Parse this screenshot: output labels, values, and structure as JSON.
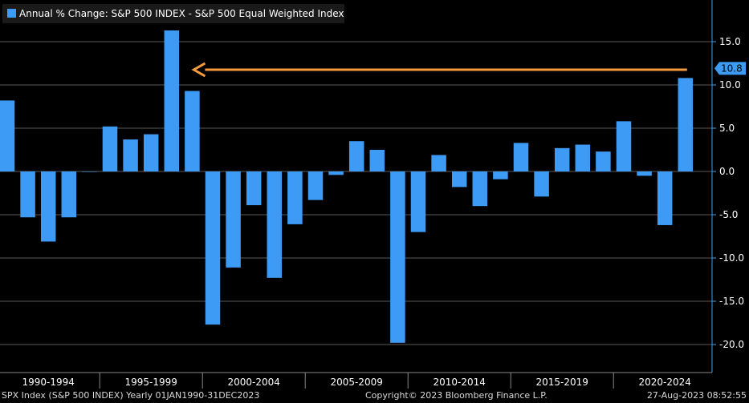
{
  "chart_data": {
    "type": "bar",
    "title": "Annual % Change: S&P 500 INDEX - S&P 500 Equal Weighted Index",
    "legend_position": "top-left",
    "series": [
      {
        "name": "Annual % Change: S&P 500 INDEX - S&P 500 Equal Weighted Index",
        "color": "#3d9bf5",
        "x": [
          1990,
          1991,
          1992,
          1993,
          1994,
          1995,
          1996,
          1997,
          1998,
          1999,
          2000,
          2001,
          2002,
          2003,
          2004,
          2005,
          2006,
          2007,
          2008,
          2009,
          2010,
          2011,
          2012,
          2013,
          2014,
          2015,
          2016,
          2017,
          2018,
          2019,
          2020,
          2021,
          2022,
          2023
        ],
        "values": [
          8.2,
          -5.3,
          -8.1,
          -5.3,
          0.0,
          5.2,
          3.7,
          4.3,
          16.3,
          9.3,
          -17.7,
          -11.1,
          -3.9,
          -12.3,
          -6.1,
          -3.3,
          -0.4,
          3.5,
          2.5,
          -19.8,
          -7.0,
          1.9,
          -1.8,
          -4.0,
          -0.9,
          3.3,
          -2.9,
          2.7,
          3.1,
          2.3,
          5.8,
          -0.5,
          -6.2,
          10.8
        ]
      }
    ],
    "categories": [
      "1990-1994",
      "1995-1999",
      "2000-2004",
      "2005-2009",
      "2010-2014",
      "2015-2019",
      "2020-2024"
    ],
    "yticks": [
      15.0,
      10.0,
      5.0,
      0.0,
      -5.0,
      -10.0,
      -15.0,
      -20.0
    ],
    "ytick_labels": [
      "15.0",
      "10.0",
      "5.0",
      "0.0",
      "-5.0",
      "-10.0",
      "-15.0",
      "-20.0"
    ],
    "ylim": [
      -23.5,
      19.5
    ],
    "xlim": [
      1990,
      2024
    ],
    "grid": true,
    "last_value_label": "10.8",
    "annotation": "orange arrow from 2023 bar level back to the 1998 bar",
    "arrow_color": "#f39a3c",
    "background": "#000000",
    "grid_color": "#5a5a5a",
    "axis_color": "#3d9bf5"
  },
  "footer": {
    "left": "SPX Index (S&P 500 INDEX)  Yearly 01JAN1990-31DEC2023",
    "center": "Copyright© 2023 Bloomberg Finance L.P.",
    "right": "27-Aug-2023 08:52:55"
  }
}
